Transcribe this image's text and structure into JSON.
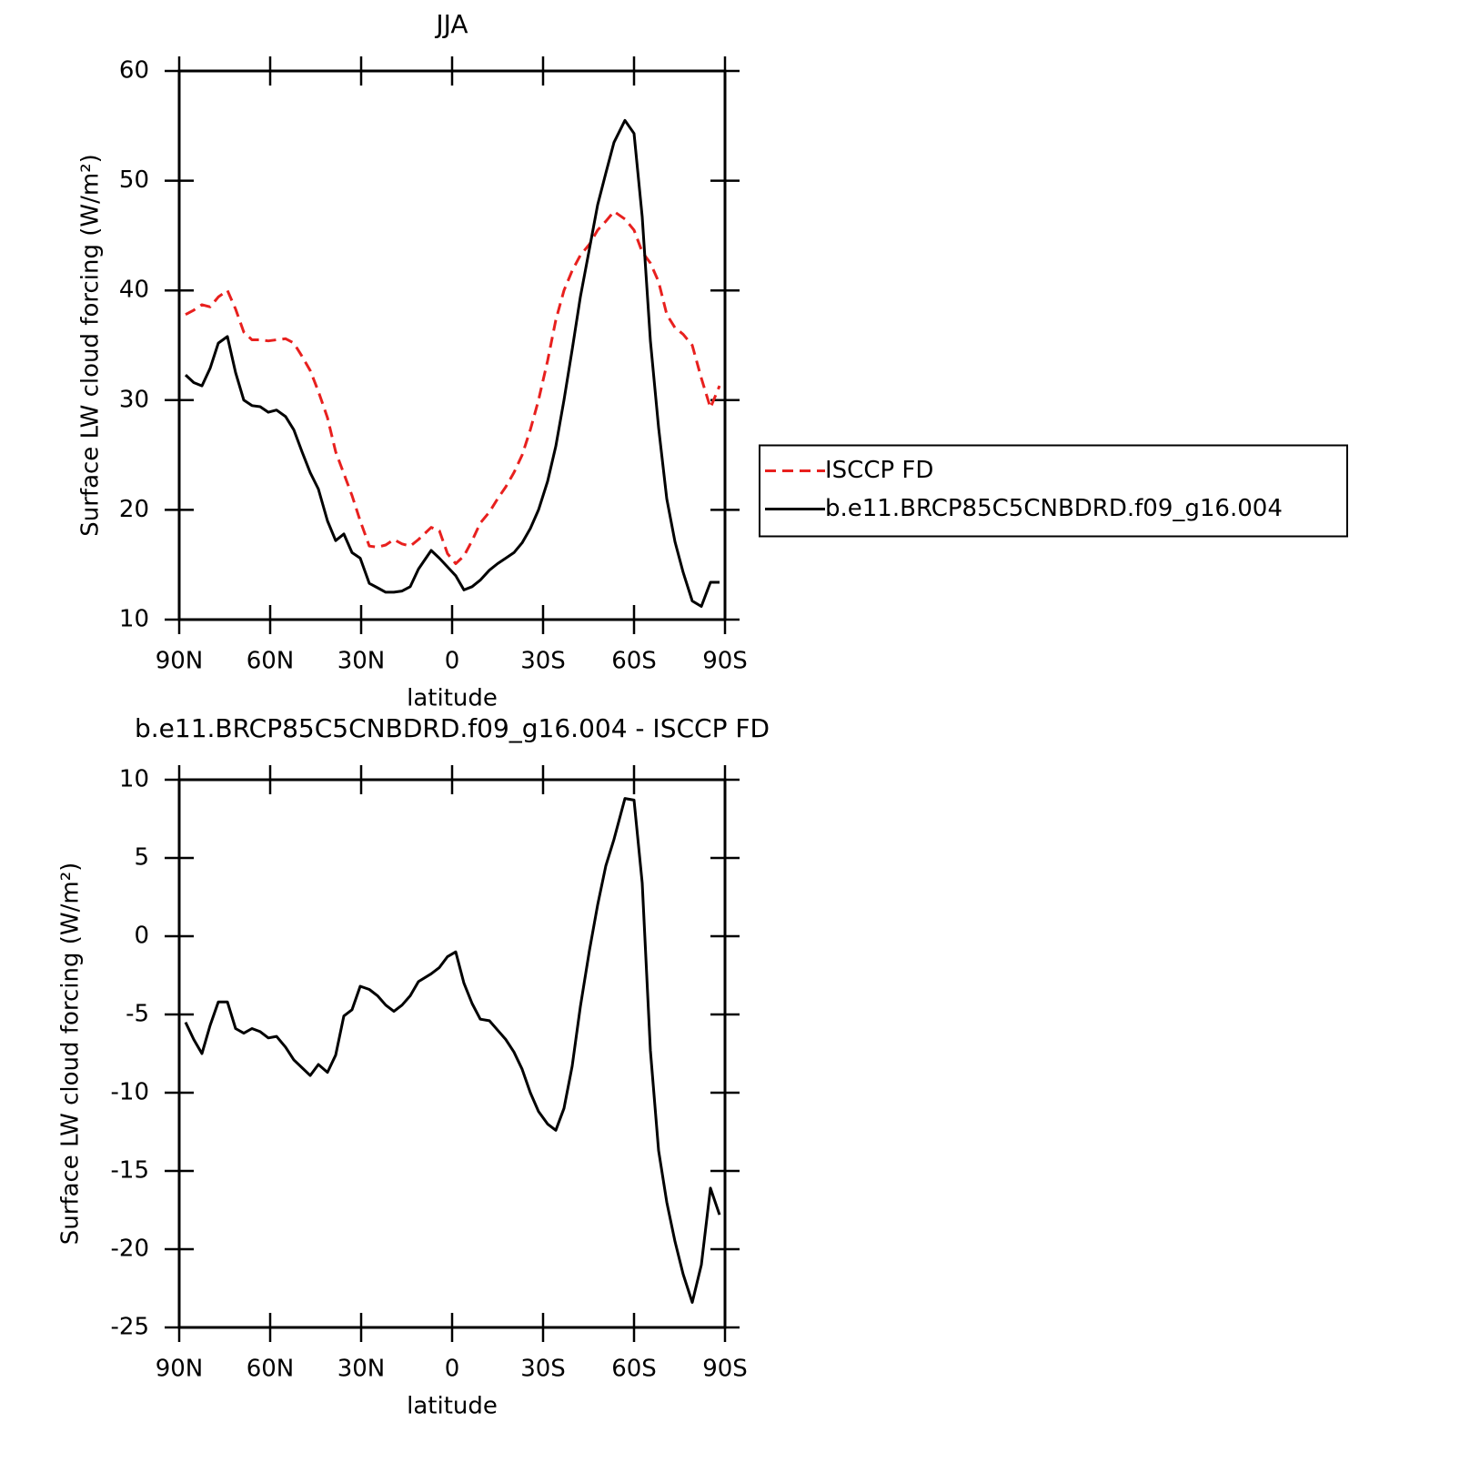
{
  "chart_data": [
    {
      "type": "line",
      "title": "JJA",
      "xlabel": "latitude",
      "ylabel": "Surface LW cloud forcing (W/m²)",
      "x": [
        87.9,
        85.2,
        82.5,
        79.8,
        77.1,
        74.1,
        71.4,
        68.7,
        66,
        63.3,
        60.6,
        57.9,
        54.9,
        52.2,
        49.5,
        46.8,
        44.1,
        41.1,
        38.4,
        35.7,
        33,
        30.3,
        27.3,
        24.6,
        21.9,
        19.2,
        16.5,
        13.8,
        11.1,
        6.9,
        4.2,
        1.5,
        -1.2,
        -3.9,
        -6.6,
        -9.3,
        -12.3,
        -15,
        -17.7,
        -20.4,
        -23.1,
        -25.8,
        -28.5,
        -31.5,
        -34.2,
        -36.9,
        -39.6,
        -42.3,
        -45.3,
        -48,
        -50.7,
        -53.4,
        -57,
        -60,
        -62.7,
        -65.4,
        -68.1,
        -70.8,
        -73.5,
        -76.2,
        -79.2,
        -82.2,
        -85.2,
        -88.2
      ],
      "series": [
        {
          "name": "ISCCP FD",
          "color": "#e8201e",
          "dash": "dashed",
          "values": [
            37.8,
            38.2,
            38.7,
            38.5,
            39.4,
            40.0,
            38.3,
            36.2,
            35.5,
            35.5,
            35.4,
            35.5,
            35.6,
            35.2,
            34.0,
            32.7,
            30.8,
            28.4,
            25.3,
            23.3,
            21.3,
            19.0,
            16.7,
            16.6,
            16.8,
            17.3,
            16.9,
            16.7,
            17.3,
            18.4,
            18.1,
            16.0,
            15.1,
            15.8,
            17.2,
            18.8,
            19.8,
            21.0,
            22.1,
            23.4,
            25.0,
            27.3,
            30.0,
            33.6,
            37.3,
            40.0,
            41.8,
            43.2,
            44.2,
            45.5,
            46.3,
            47.2,
            46.5,
            45.5,
            43.5,
            42.5,
            40.8,
            37.8,
            36.6,
            36.0,
            35.0,
            32.0,
            29.3,
            31.3
          ]
        },
        {
          "name": "b.e11.BRCP85C5CNBDRD.f09_g16.004",
          "color": "#000000",
          "dash": "solid",
          "values": [
            32.3,
            31.6,
            31.3,
            32.9,
            35.2,
            35.8,
            32.5,
            30.0,
            29.5,
            29.4,
            28.9,
            29.1,
            28.5,
            27.3,
            25.3,
            23.4,
            21.9,
            19.0,
            17.2,
            17.8,
            16.1,
            15.6,
            13.3,
            12.9,
            12.5,
            12.5,
            12.6,
            13.0,
            14.6,
            16.3,
            15.6,
            14.8,
            14.0,
            12.7,
            13.0,
            13.6,
            14.5,
            15.1,
            15.6,
            16.1,
            17.0,
            18.3,
            20.0,
            22.6,
            25.8,
            30.0,
            34.6,
            39.4,
            43.8,
            47.8,
            50.7,
            53.5,
            55.5,
            54.3,
            46.7,
            35.4,
            27.5,
            21.0,
            17.1,
            14.3,
            11.7,
            11.2,
            13.4,
            13.4
          ]
        }
      ],
      "xlim": [
        90,
        -90
      ],
      "xticks": [
        {
          "value": 90,
          "label": "90N"
        },
        {
          "value": 60,
          "label": "60N"
        },
        {
          "value": 30,
          "label": "30N"
        },
        0,
        {
          "value": -30,
          "label": "30S"
        },
        {
          "value": -60,
          "label": "60S"
        },
        {
          "value": -90,
          "label": "90S"
        }
      ],
      "ylim": [
        10,
        60
      ],
      "yticks": [
        10,
        20,
        30,
        40,
        50,
        60
      ],
      "grid": false,
      "legend": "outside-right"
    },
    {
      "type": "line",
      "title": "b.e11.BRCP85C5CNBDRD.f09_g16.004 - ISCCP FD",
      "xlabel": "latitude",
      "ylabel": "Surface LW cloud forcing (W/m²)",
      "x": [
        87.9,
        85.2,
        82.5,
        79.8,
        77.1,
        74.1,
        71.4,
        68.7,
        66,
        63.3,
        60.6,
        57.9,
        54.9,
        52.2,
        49.5,
        46.8,
        44.1,
        41.1,
        38.4,
        35.7,
        33,
        30.3,
        27.3,
        24.6,
        21.9,
        19.2,
        16.5,
        13.8,
        11.1,
        6.9,
        4.2,
        1.5,
        -1.2,
        -3.9,
        -6.6,
        -9.3,
        -12.3,
        -15,
        -17.7,
        -20.4,
        -23.1,
        -25.8,
        -28.5,
        -31.5,
        -34.2,
        -36.9,
        -39.6,
        -42.3,
        -45.3,
        -48,
        -50.7,
        -53.4,
        -57,
        -60,
        -62.7,
        -65.4,
        -68.1,
        -70.8,
        -73.5,
        -76.2,
        -79.2,
        -82.2,
        -85.2,
        -88.2
      ],
      "color": "#000000",
      "values": [
        -5.5,
        -6.6,
        -7.5,
        -5.7,
        -4.2,
        -4.2,
        -5.9,
        -6.2,
        -5.9,
        -6.1,
        -6.5,
        -6.4,
        -7.1,
        -7.9,
        -8.4,
        -8.9,
        -8.2,
        -8.7,
        -7.6,
        -5.1,
        -4.7,
        -3.2,
        -3.4,
        -3.8,
        -4.4,
        -4.8,
        -4.4,
        -3.8,
        -2.9,
        -2.4,
        -2.0,
        -1.3,
        -1.0,
        -3.0,
        -4.3,
        -5.3,
        -5.4,
        -6.0,
        -6.6,
        -7.4,
        -8.5,
        -10.0,
        -11.2,
        -12.0,
        -12.4,
        -11.0,
        -8.3,
        -4.5,
        -0.9,
        2.0,
        4.5,
        6.2,
        8.8,
        8.7,
        3.4,
        -7.3,
        -13.7,
        -17.0,
        -19.5,
        -21.6,
        -23.4,
        -21.0,
        -16.1,
        -17.8
      ],
      "xlim": [
        90,
        -90
      ],
      "xticks": [
        {
          "value": 90,
          "label": "90N"
        },
        {
          "value": 60,
          "label": "60N"
        },
        {
          "value": 30,
          "label": "30N"
        },
        0,
        {
          "value": -30,
          "label": "30S"
        },
        {
          "value": -60,
          "label": "60S"
        },
        {
          "value": -90,
          "label": "90S"
        }
      ],
      "ylim": [
        -25,
        10
      ],
      "yticks": [
        -25,
        -20,
        -15,
        -10,
        -5,
        0,
        5,
        10
      ],
      "grid": false
    }
  ]
}
